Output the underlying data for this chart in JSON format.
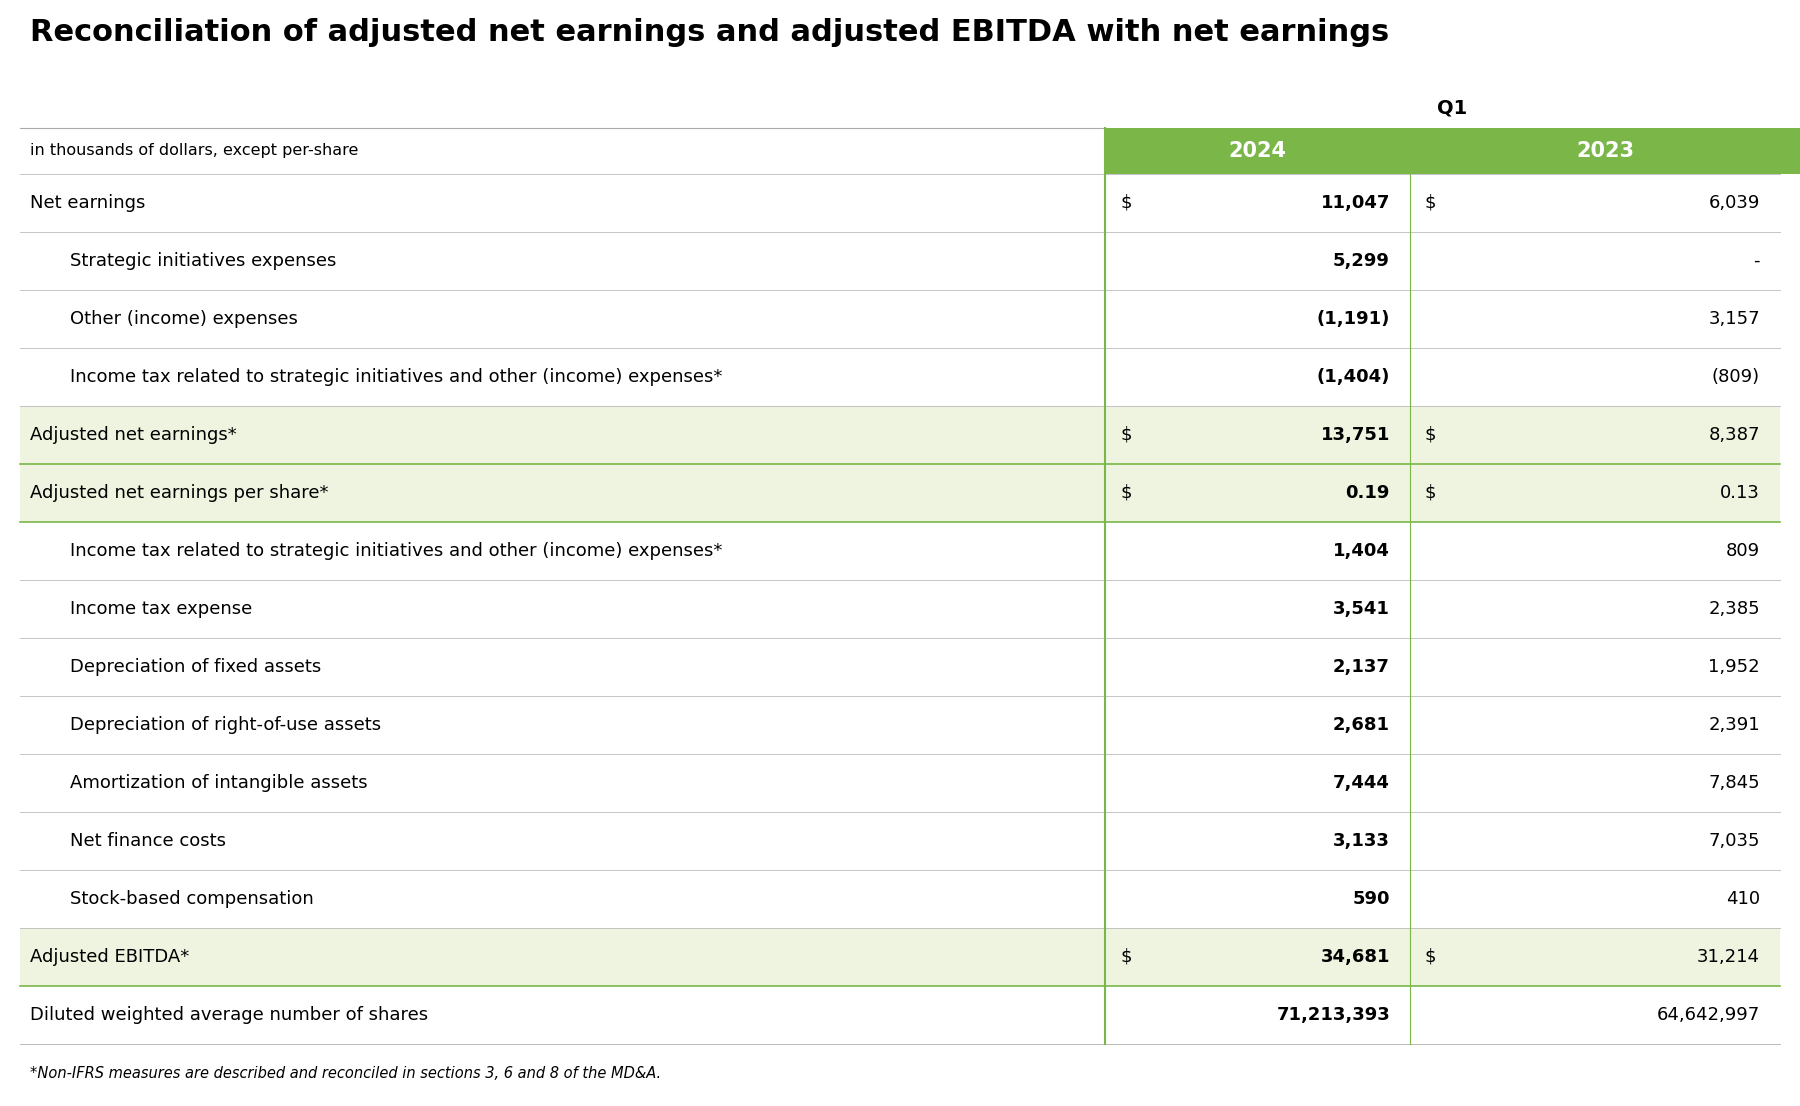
{
  "title": "Reconciliation of adjusted net earnings and adjusted EBITDA with net earnings",
  "subtitle": "in thousands of dollars, except per-share",
  "q1_label": "Q1",
  "col_2024": "2024",
  "col_2023": "2023",
  "footnote": "*Non-IFRS measures are described and reconciled in sections 3, 6 and 8 of the MD&A.",
  "header_bg": "#7AB648",
  "header_text": "#FFFFFF",
  "highlight_bg": "#EEF4E0",
  "white_bg": "#FFFFFF",
  "border_color": "#7AB648",
  "light_border": "#BBBBBB",
  "title_color": "#000000",
  "rows": [
    {
      "label": "Net earnings",
      "indent": false,
      "highlight": false,
      "dollar_sign_2024": true,
      "dollar_sign_2023": true,
      "val_2024": "11,047",
      "val_2023": "6,039",
      "bold_2024": true,
      "bold_2023": false
    },
    {
      "label": "Strategic initiatives expenses",
      "indent": true,
      "highlight": false,
      "dollar_sign_2024": false,
      "dollar_sign_2023": false,
      "val_2024": "5,299",
      "val_2023": "-",
      "bold_2024": true,
      "bold_2023": false
    },
    {
      "label": "Other (income) expenses",
      "indent": true,
      "highlight": false,
      "dollar_sign_2024": false,
      "dollar_sign_2023": false,
      "val_2024": "(1,191)",
      "val_2023": "3,157",
      "bold_2024": true,
      "bold_2023": false
    },
    {
      "label": "Income tax related to strategic initiatives and other (income) expenses*",
      "indent": true,
      "highlight": false,
      "dollar_sign_2024": false,
      "dollar_sign_2023": false,
      "val_2024": "(1,404)",
      "val_2023": "(809)",
      "bold_2024": true,
      "bold_2023": false
    },
    {
      "label": "Adjusted net earnings*",
      "indent": false,
      "highlight": true,
      "dollar_sign_2024": true,
      "dollar_sign_2023": true,
      "val_2024": "13,751",
      "val_2023": "8,387",
      "bold_2024": true,
      "bold_2023": false
    },
    {
      "label": "Adjusted net earnings per share*",
      "indent": false,
      "highlight": true,
      "dollar_sign_2024": true,
      "dollar_sign_2023": true,
      "val_2024": "0.19",
      "val_2023": "0.13",
      "bold_2024": true,
      "bold_2023": false
    },
    {
      "label": "Income tax related to strategic initiatives and other (income) expenses*",
      "indent": true,
      "highlight": false,
      "dollar_sign_2024": false,
      "dollar_sign_2023": false,
      "val_2024": "1,404",
      "val_2023": "809",
      "bold_2024": true,
      "bold_2023": false
    },
    {
      "label": "Income tax expense",
      "indent": true,
      "highlight": false,
      "dollar_sign_2024": false,
      "dollar_sign_2023": false,
      "val_2024": "3,541",
      "val_2023": "2,385",
      "bold_2024": true,
      "bold_2023": false
    },
    {
      "label": "Depreciation of fixed assets",
      "indent": true,
      "highlight": false,
      "dollar_sign_2024": false,
      "dollar_sign_2023": false,
      "val_2024": "2,137",
      "val_2023": "1,952",
      "bold_2024": true,
      "bold_2023": false
    },
    {
      "label": "Depreciation of right-of-use assets",
      "indent": true,
      "highlight": false,
      "dollar_sign_2024": false,
      "dollar_sign_2023": false,
      "val_2024": "2,681",
      "val_2023": "2,391",
      "bold_2024": true,
      "bold_2023": false
    },
    {
      "label": "Amortization of intangible assets",
      "indent": true,
      "highlight": false,
      "dollar_sign_2024": false,
      "dollar_sign_2023": false,
      "val_2024": "7,444",
      "val_2023": "7,845",
      "bold_2024": true,
      "bold_2023": false
    },
    {
      "label": "Net finance costs",
      "indent": true,
      "highlight": false,
      "dollar_sign_2024": false,
      "dollar_sign_2023": false,
      "val_2024": "3,133",
      "val_2023": "7,035",
      "bold_2024": true,
      "bold_2023": false
    },
    {
      "label": "Stock-based compensation",
      "indent": true,
      "highlight": false,
      "dollar_sign_2024": false,
      "dollar_sign_2023": false,
      "val_2024": "590",
      "val_2023": "410",
      "bold_2024": true,
      "bold_2023": false
    },
    {
      "label": "Adjusted EBITDA*",
      "indent": false,
      "highlight": true,
      "dollar_sign_2024": true,
      "dollar_sign_2023": true,
      "val_2024": "34,681",
      "val_2023": "31,214",
      "bold_2024": true,
      "bold_2023": false
    },
    {
      "label": "Diluted weighted average number of shares",
      "indent": false,
      "highlight": false,
      "dollar_sign_2024": false,
      "dollar_sign_2023": false,
      "val_2024": "71,213,393",
      "val_2023": "64,642,997",
      "bold_2024": true,
      "bold_2023": false
    }
  ]
}
